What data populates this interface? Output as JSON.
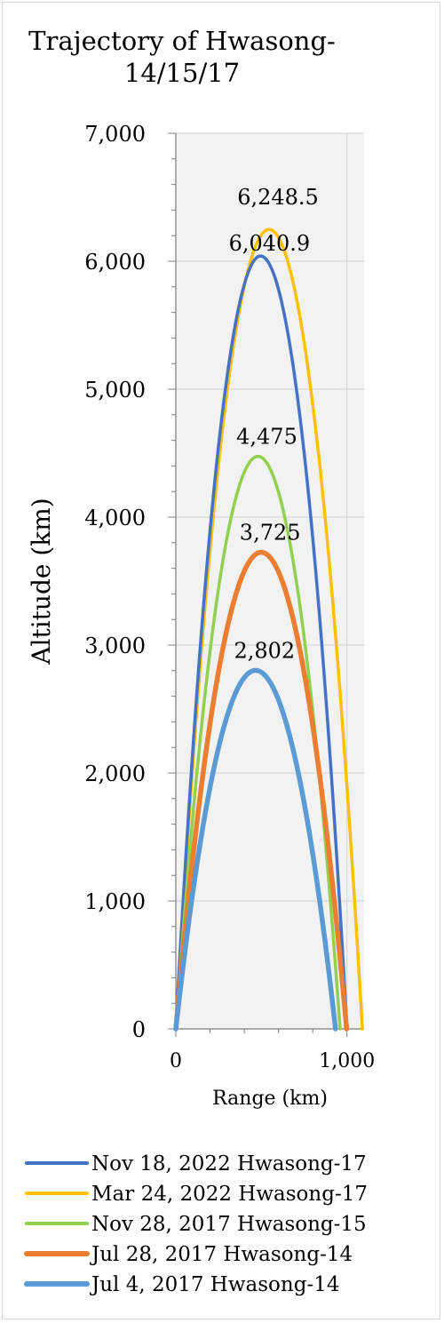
{
  "chart_data": {
    "type": "line",
    "title": "Trajectory of Hwasong-\n14/15/17",
    "xlabel": "Range (km)",
    "ylabel": "Altitude (km)",
    "xlim": [
      0,
      1100
    ],
    "ylim": [
      0,
      7000
    ],
    "x_ticks": [
      0,
      1000
    ],
    "x_tick_labels": [
      "0",
      "1,000"
    ],
    "y_ticks": [
      0,
      1000,
      2000,
      3000,
      4000,
      5000,
      6000,
      7000
    ],
    "y_tick_labels": [
      "0",
      "1,000",
      "2,000",
      "3,000",
      "4,000",
      "5,000",
      "6,000",
      "7,000"
    ],
    "grid": true,
    "legend_position": "bottom",
    "series": [
      {
        "name": "Nov 18, 2022 Hwasong-17",
        "color": "#4472C4",
        "range_km": 1000,
        "apex_x": 495,
        "apex_altitude": 6040.9,
        "apex_label": "6,040.9",
        "x": [
          0,
          1000
        ],
        "y": [
          0,
          0
        ]
      },
      {
        "name": "Mar 24, 2022 Hwasong-17",
        "color": "#FFC000",
        "range_km": 1090,
        "apex_x": 545,
        "apex_altitude": 6248.5,
        "apex_label": "6,248.5",
        "x": [
          0,
          1090
        ],
        "y": [
          0,
          0
        ]
      },
      {
        "name": "Nov 28, 2017 Hwasong-15",
        "color": "#92D050",
        "range_km": 960,
        "apex_x": 480,
        "apex_altitude": 4475,
        "apex_label": "4,475",
        "x": [
          0,
          960
        ],
        "y": [
          0,
          0
        ]
      },
      {
        "name": "Jul 28, 2017 Hwasong-14",
        "color": "#ED7D31",
        "range_km": 998,
        "apex_x": 499,
        "apex_altitude": 3725,
        "apex_label": "3,725",
        "x": [
          0,
          998
        ],
        "y": [
          0,
          0
        ]
      },
      {
        "name": "Jul 4, 2017 Hwasong-14",
        "color": "#5B9BD5",
        "range_km": 933,
        "apex_x": 466,
        "apex_altitude": 2802,
        "apex_label": "2,802",
        "x": [
          0,
          933
        ],
        "y": [
          0,
          0
        ]
      }
    ]
  }
}
